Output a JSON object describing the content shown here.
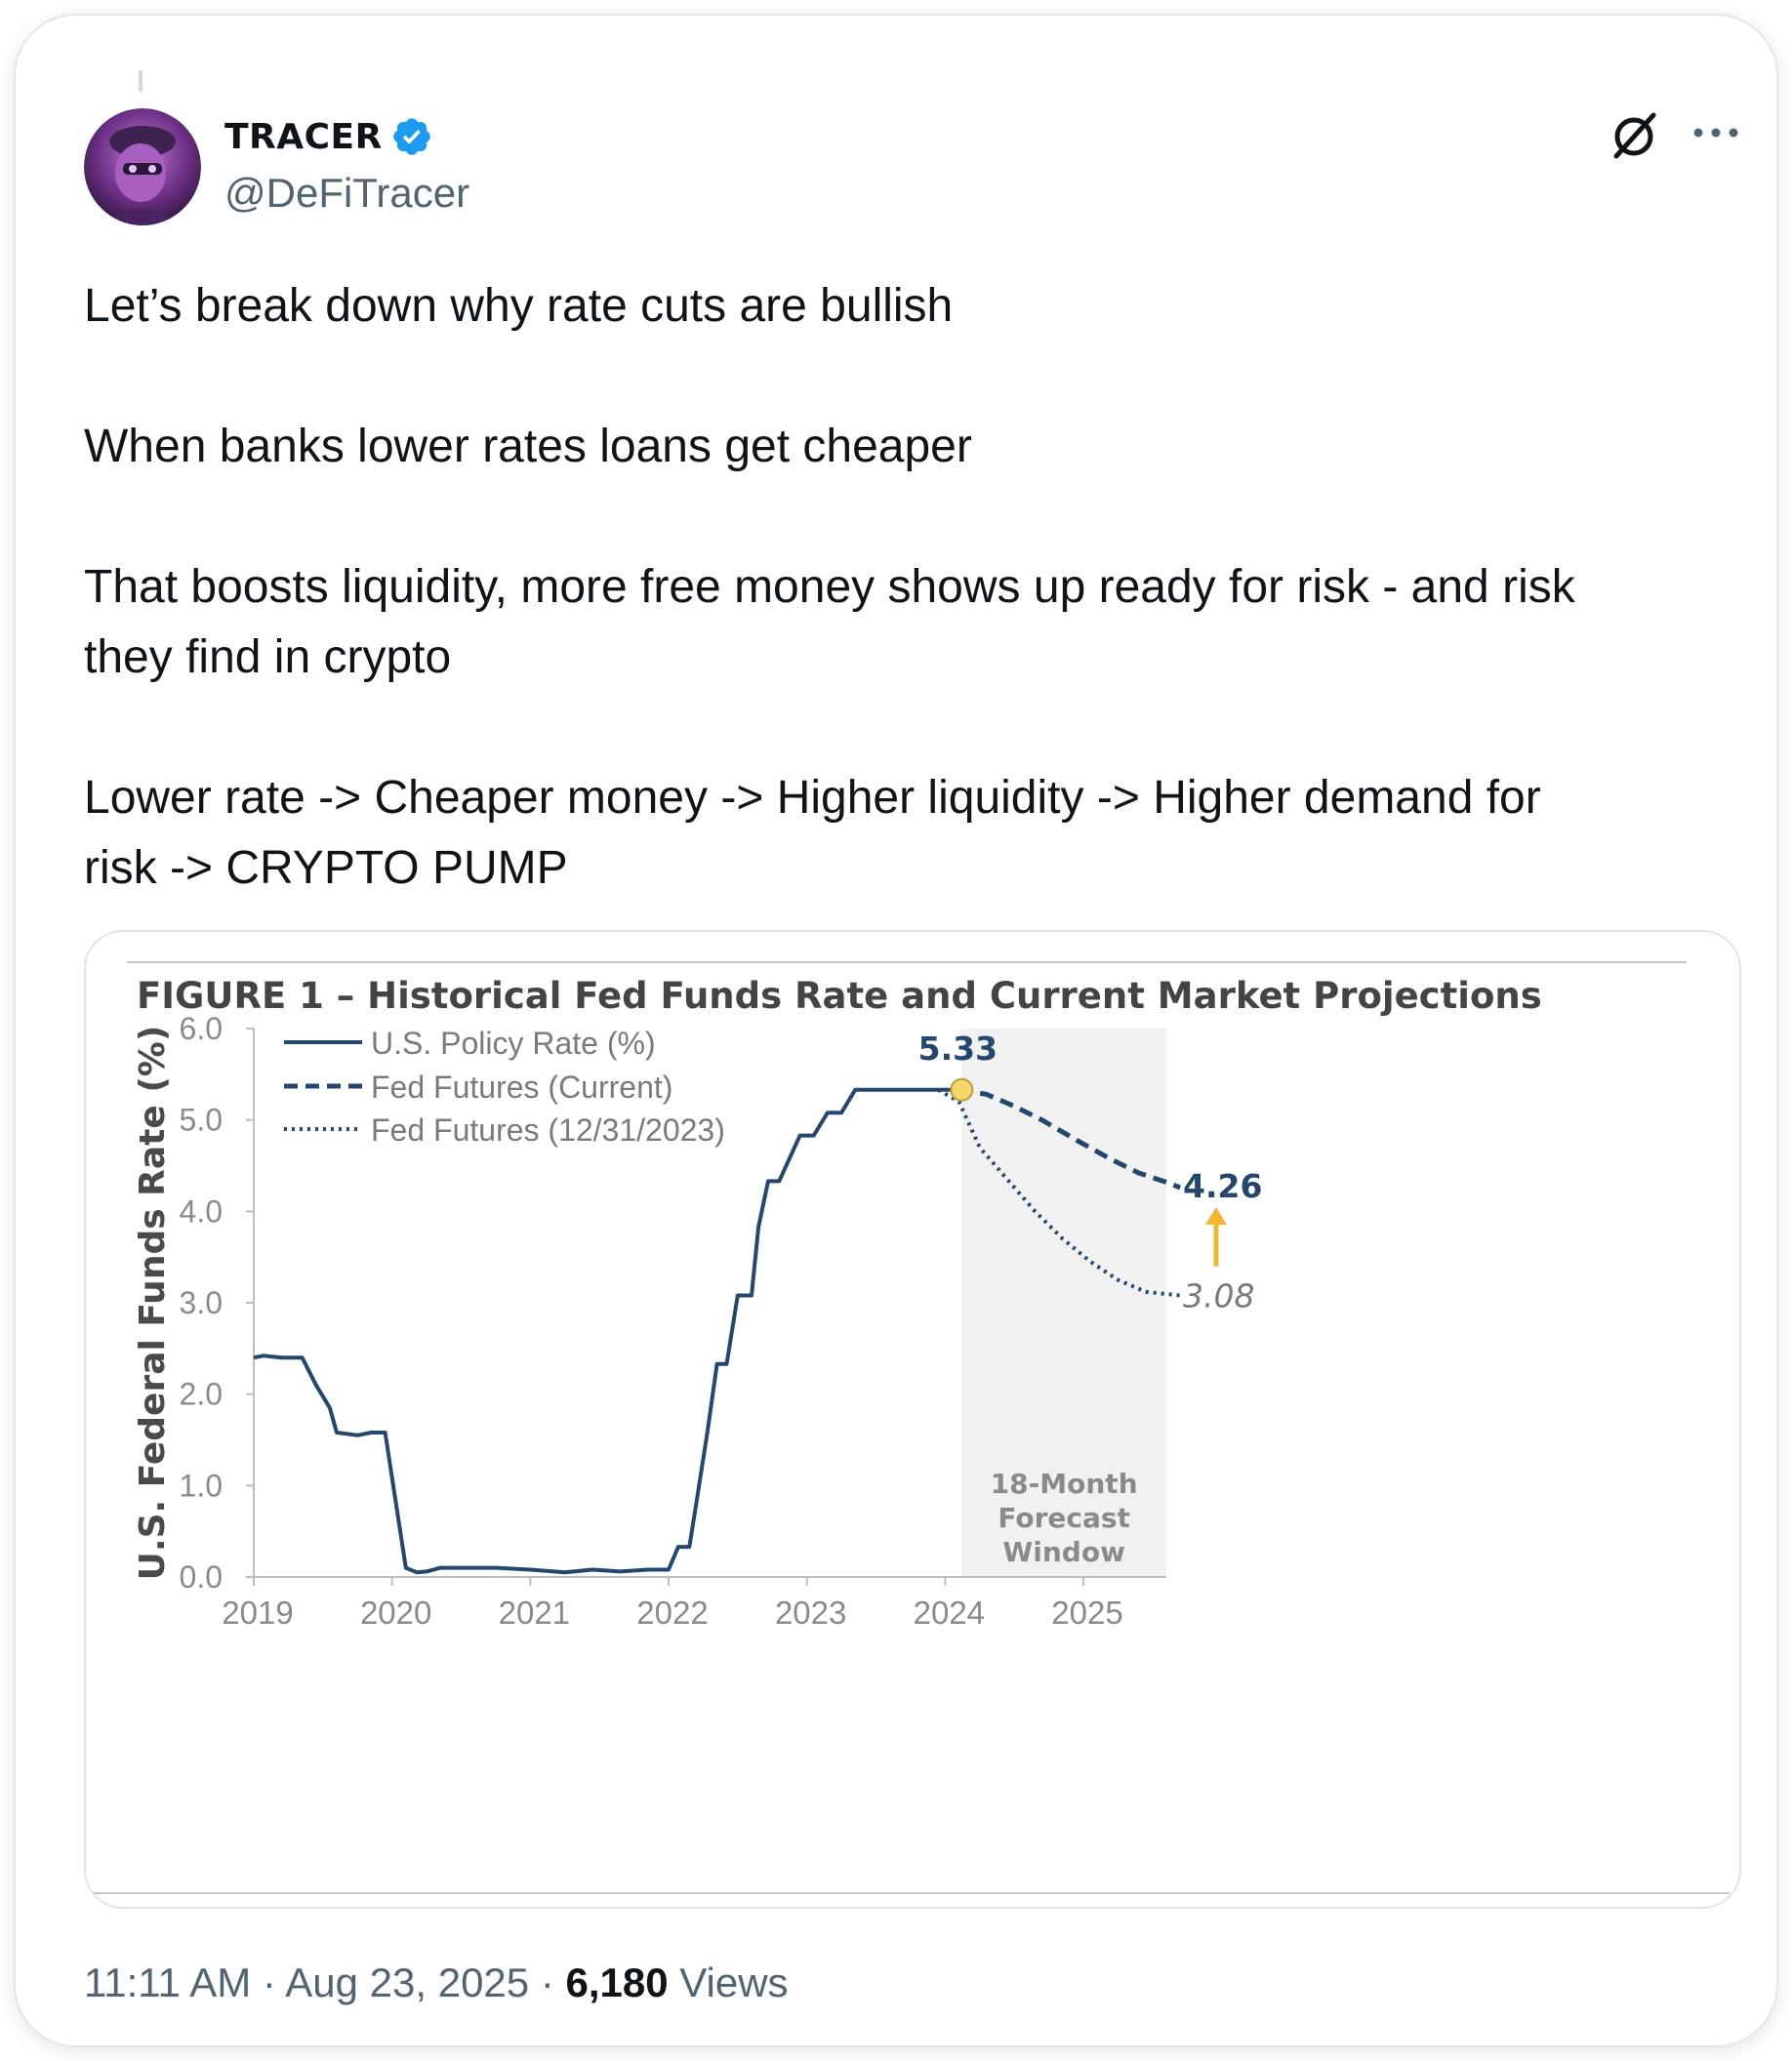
{
  "author": {
    "display_name": "TRACER",
    "handle": "@DeFiTracer",
    "verified": true
  },
  "tweet": {
    "paragraphs": [
      "Let’s break down why rate cuts are bullish",
      "When banks lower rates loans get cheaper",
      "That boosts liquidity, more free money shows up ready for risk - and risk\nthey find in crypto",
      "Lower rate -> Cheaper money -> Higher liquidity -> Higher demand for\nrisk -> CRYPTO PUMP"
    ]
  },
  "meta": {
    "time": "11:11 AM",
    "separator": "·",
    "date": "Aug 23, 2025",
    "views_count": "6,180",
    "views_label": "Views"
  },
  "icons": {
    "verified": "verified-badge-icon",
    "grok": "grok-icon",
    "more": "more-dots-icon"
  },
  "colors": {
    "verified_blue": "#1d9bf0",
    "series_navy": "#24476e",
    "forecast_shade": "#f1f1f1",
    "highlight_dot": "#f5d76e",
    "arrow_gold": "#f2b630"
  },
  "chart_data": {
    "type": "line",
    "title": "FIGURE 1 – Historical Fed Funds Rate and Current Market Projections",
    "ylabel": "U.S. Federal Funds Rate (%)",
    "xlabel": "",
    "ylim": [
      0,
      6
    ],
    "xlim": [
      2019,
      2025.9
    ],
    "yticks": [
      "0.0",
      "1.0",
      "2.0",
      "3.0",
      "4.0",
      "5.0",
      "6.0"
    ],
    "xticks": [
      "2019",
      "2020",
      "2021",
      "2022",
      "2023",
      "2024",
      "2025"
    ],
    "grid": false,
    "legend_position": "top-left",
    "series": [
      {
        "name": "U.S. Policy Rate (%)",
        "style": "solid",
        "points": [
          [
            2019.0,
            2.4
          ],
          [
            2019.07,
            2.42
          ],
          [
            2019.2,
            2.4
          ],
          [
            2019.35,
            2.4
          ],
          [
            2019.45,
            2.1
          ],
          [
            2019.55,
            1.85
          ],
          [
            2019.6,
            1.58
          ],
          [
            2019.75,
            1.55
          ],
          [
            2019.85,
            1.58
          ],
          [
            2019.95,
            1.58
          ],
          [
            2020.1,
            0.1
          ],
          [
            2020.18,
            0.05
          ],
          [
            2020.25,
            0.06
          ],
          [
            2020.35,
            0.1
          ],
          [
            2020.5,
            0.1
          ],
          [
            2020.75,
            0.1
          ],
          [
            2021.0,
            0.08
          ],
          [
            2021.25,
            0.05
          ],
          [
            2021.45,
            0.08
          ],
          [
            2021.65,
            0.06
          ],
          [
            2021.85,
            0.08
          ],
          [
            2022.0,
            0.08
          ],
          [
            2022.07,
            0.33
          ],
          [
            2022.15,
            0.33
          ],
          [
            2022.2,
            0.8
          ],
          [
            2022.28,
            1.58
          ],
          [
            2022.35,
            2.33
          ],
          [
            2022.42,
            2.33
          ],
          [
            2022.5,
            3.08
          ],
          [
            2022.6,
            3.08
          ],
          [
            2022.65,
            3.83
          ],
          [
            2022.72,
            4.33
          ],
          [
            2022.8,
            4.33
          ],
          [
            2022.95,
            4.83
          ],
          [
            2023.05,
            4.83
          ],
          [
            2023.15,
            5.08
          ],
          [
            2023.25,
            5.08
          ],
          [
            2023.35,
            5.33
          ],
          [
            2024.1,
            5.33
          ]
        ]
      },
      {
        "name": "Fed Futures (Current)",
        "style": "dashed",
        "points": [
          [
            2024.1,
            5.33
          ],
          [
            2024.3,
            5.28
          ],
          [
            2024.5,
            5.15
          ],
          [
            2024.7,
            5.0
          ],
          [
            2024.95,
            4.78
          ],
          [
            2025.2,
            4.57
          ],
          [
            2025.4,
            4.42
          ],
          [
            2025.6,
            4.32
          ],
          [
            2025.7,
            4.26
          ]
        ]
      },
      {
        "name": "Fed Futures (12/31/2023)",
        "style": "dotted",
        "points": [
          [
            2023.95,
            5.33
          ],
          [
            2024.1,
            5.2
          ],
          [
            2024.25,
            4.7
          ],
          [
            2024.45,
            4.35
          ],
          [
            2024.65,
            4.0
          ],
          [
            2024.85,
            3.7
          ],
          [
            2025.05,
            3.45
          ],
          [
            2025.25,
            3.25
          ],
          [
            2025.45,
            3.12
          ],
          [
            2025.7,
            3.08
          ]
        ]
      }
    ],
    "shaded_region": {
      "x_start": 2024.12,
      "x_end": 2025.6,
      "label": [
        "18-Month",
        "Forecast",
        "Window"
      ]
    },
    "annotations": [
      {
        "text": "5.33",
        "at": [
          2024.12,
          5.33
        ],
        "style": "bold"
      },
      {
        "text": "4.26",
        "at": [
          2025.7,
          4.26
        ],
        "style": "bold"
      },
      {
        "text": "3.08",
        "at": [
          2025.7,
          3.08
        ],
        "style": "italic"
      }
    ],
    "highlight_point": [
      2024.12,
      5.33
    ],
    "arrow": {
      "from": 3.08,
      "to": 4.26
    }
  }
}
